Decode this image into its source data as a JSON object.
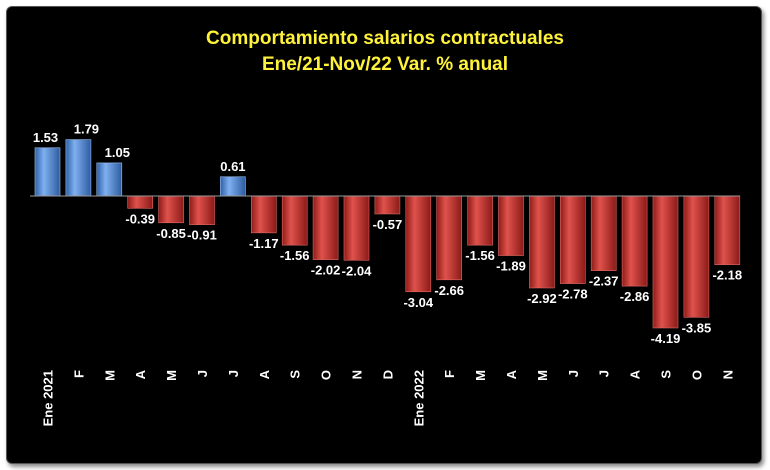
{
  "chart_data": {
    "type": "bar",
    "title": "Comportamiento salarios contractuales",
    "subtitle": "Ene/21-Nov/22 Var. % anual",
    "xlabel": "",
    "ylabel": "",
    "grid": false,
    "legend": "none",
    "categories": [
      "Ene 2021",
      "F",
      "M",
      "A",
      "M",
      "J",
      "J",
      "A",
      "S",
      "O",
      "N",
      "D",
      "Ene 2022",
      "F",
      "M",
      "A",
      "M",
      "J",
      "J",
      "A",
      "S",
      "O",
      "N"
    ],
    "values": [
      1.53,
      1.79,
      1.05,
      -0.39,
      -0.85,
      -0.91,
      0.61,
      -1.17,
      -1.56,
      -2.02,
      -2.04,
      -0.57,
      -3.04,
      -2.66,
      -1.56,
      -1.89,
      -2.92,
      -2.78,
      -2.37,
      -2.86,
      -4.19,
      -3.85,
      -2.18
    ],
    "value_labels": [
      "1.53",
      "1.79",
      "1.05",
      "-0.39",
      "-0.85",
      "-0.91",
      "0.61",
      "-1.17",
      "-1.56",
      "-2.02",
      "-2.04",
      "-0.57",
      "-3.04",
      "-2.66",
      "-1.56",
      "-1.89",
      "-2.92",
      "-2.78",
      "-2.37",
      "-2.86",
      "-4.19",
      "-3.85",
      "-2.18"
    ],
    "colors": {
      "positive": "#4f86d6",
      "negative": "#c0302c",
      "title": "#fff23a",
      "background": "#000000",
      "text": "#ffffff"
    }
  }
}
